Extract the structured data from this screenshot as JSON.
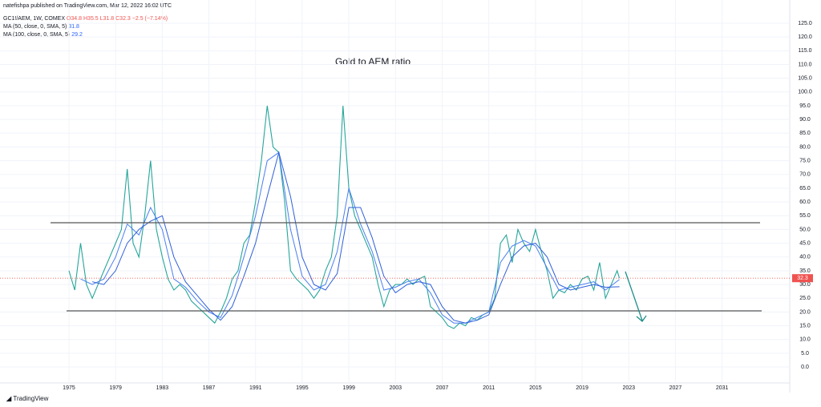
{
  "header": {
    "publisher": "natefishpa published on TradingView.com, Mar 12, 2022 16:02 UTC",
    "symbol": "GC1!/AEM, 1W, COMEX",
    "open": "O34.8",
    "high": "H35.5",
    "low": "L31.8",
    "close": "C32.3",
    "change": "−2.5 (−7.14%)",
    "ma50": "MA (50, close, 0, SMA, 5)",
    "ma50_value": "31.8",
    "ma100": "MA (100, close, 0, SMA, 5)",
    "ma100_value": "29.2"
  },
  "footer": {
    "brand": "TradingView"
  },
  "chart_data": {
    "type": "line",
    "title": "Gold to AEM ratio",
    "xlim": [
      1969.09,
      2036.8
    ],
    "ylim": [
      -5.8,
      128.2
    ],
    "xticks": [
      1975,
      1979,
      1983,
      1987,
      1991,
      1995,
      1999,
      2003,
      2007,
      2011,
      2015,
      2019,
      2023,
      2027,
      2031
    ],
    "yticks": [
      {
        "value": 0,
        "label": "0.0"
      },
      {
        "value": 5,
        "label": "5.0"
      },
      {
        "value": 10,
        "label": "10.0"
      },
      {
        "value": 15,
        "label": "15.0"
      },
      {
        "value": 20,
        "label": "20.0"
      },
      {
        "value": 25,
        "label": "25.0"
      },
      {
        "value": 30,
        "label": "30.0"
      },
      {
        "value": 35,
        "label": "35.0"
      },
      {
        "value": 40,
        "label": "40.0"
      },
      {
        "value": 45,
        "label": "45.0"
      },
      {
        "value": 50,
        "label": "50.0"
      },
      {
        "value": 55,
        "label": "55.0"
      },
      {
        "value": 60,
        "label": "60.0"
      },
      {
        "value": 65,
        "label": "65.0"
      },
      {
        "value": 70,
        "label": "70.0"
      },
      {
        "value": 75,
        "label": "75.0"
      },
      {
        "value": 80,
        "label": "80.0"
      },
      {
        "value": 85,
        "label": "85.0"
      },
      {
        "value": 90,
        "label": "90.0"
      },
      {
        "value": 95,
        "label": "95.0"
      },
      {
        "value": 100,
        "label": "100.0"
      },
      {
        "value": 105,
        "label": "105.0"
      },
      {
        "value": 110,
        "label": "110.0"
      },
      {
        "value": 115,
        "label": "115.0"
      },
      {
        "value": 120,
        "label": "120.0"
      },
      {
        "value": 125,
        "label": "125.0"
      }
    ],
    "grid": true,
    "last_price": 32.3,
    "series": [
      {
        "color": "#26a69a",
        "x": [
          1975.0,
          1975.5,
          1976.0,
          1976.5,
          1977.0,
          1977.5,
          1978.0,
          1978.5,
          1979.0,
          1979.5,
          1980.0,
          1980.5,
          1981.0,
          1981.5,
          1982.0,
          1982.5,
          1983.0,
          1983.5,
          1984.0,
          1984.5,
          1985.0,
          1985.5,
          1986.0,
          1986.5,
          1987.0,
          1987.5,
          1988.0,
          1988.5,
          1989.0,
          1989.5,
          1990.0,
          1990.5,
          1991.0,
          1991.5,
          1992.0,
          1992.5,
          1993.0,
          1993.5,
          1994.0,
          1994.5,
          1995.0,
          1995.5,
          1996.0,
          1996.5,
          1997.0,
          1997.5,
          1998.0,
          1998.5,
          1999.0,
          1999.5,
          2000.0,
          2000.5,
          2001.0,
          2001.5,
          2002.0,
          2002.5,
          2003.0,
          2003.5,
          2004.0,
          2004.5,
          2005.0,
          2005.5,
          2006.0,
          2006.5,
          2007.0,
          2007.5,
          2008.0,
          2008.5,
          2009.0,
          2009.5,
          2010.0,
          2010.5,
          2011.0,
          2011.5,
          2012.0,
          2012.5,
          2013.0,
          2013.5,
          2014.0,
          2014.5,
          2015.0,
          2015.5,
          2016.0,
          2016.5,
          2017.0,
          2017.5,
          2018.0,
          2018.5,
          2019.0,
          2019.5,
          2020.0,
          2020.5,
          2021.0,
          2021.5,
          2022.0,
          2022.2
        ],
        "values": [
          35,
          28,
          45,
          30,
          25,
          30,
          35,
          40,
          45,
          50,
          72,
          45,
          40,
          55,
          75,
          50,
          40,
          32,
          28,
          30,
          28,
          24,
          22,
          20,
          18,
          16,
          20,
          25,
          32,
          35,
          45,
          48,
          60,
          75,
          95,
          80,
          78,
          60,
          35,
          32,
          30,
          28,
          25,
          28,
          35,
          40,
          55,
          95,
          65,
          55,
          50,
          45,
          40,
          30,
          22,
          28,
          30,
          30,
          32,
          30,
          32,
          33,
          22,
          20,
          18,
          15,
          14,
          16,
          15,
          18,
          17,
          19,
          20,
          25,
          45,
          48,
          38,
          50,
          45,
          42,
          50,
          42,
          35,
          25,
          28,
          27,
          30,
          28,
          32,
          33,
          28,
          38,
          25,
          30,
          35,
          32.3
        ]
      },
      {
        "color": "#4a7ff0",
        "x": [
          1976,
          1977,
          1978,
          1979,
          1980,
          1981,
          1982,
          1983,
          1984,
          1985,
          1986,
          1987,
          1988,
          1989,
          1990,
          1991,
          1992,
          1993,
          1994,
          1995,
          1996,
          1997,
          1998,
          1999,
          2000,
          2001,
          2002,
          2003,
          2004,
          2005,
          2006,
          2007,
          2008,
          2009,
          2010,
          2011,
          2012,
          2013,
          2014,
          2015,
          2016,
          2017,
          2018,
          2019,
          2020,
          2021,
          2022.2
        ],
        "values": [
          32,
          30,
          32,
          40,
          52,
          48,
          58,
          50,
          32,
          29,
          24,
          20,
          18,
          26,
          40,
          55,
          75,
          78,
          50,
          33,
          28,
          30,
          42,
          65,
          52,
          42,
          28,
          29,
          31,
          32,
          27,
          19,
          16,
          16,
          18,
          20,
          38,
          44,
          46,
          44,
          36,
          28,
          29,
          30,
          31,
          28,
          31.8
        ]
      },
      {
        "color": "#2f5fd8",
        "x": [
          1977,
          1978,
          1979,
          1980,
          1981,
          1982,
          1983,
          1984,
          1985,
          1986,
          1987,
          1988,
          1989,
          1990,
          1991,
          1992,
          1993,
          1994,
          1995,
          1996,
          1997,
          1998,
          1999,
          2000,
          2001,
          2002,
          2003,
          2004,
          2005,
          2006,
          2007,
          2008,
          2009,
          2010,
          2011,
          2012,
          2013,
          2014,
          2015,
          2016,
          2017,
          2018,
          2019,
          2020,
          2021,
          2022.2
        ],
        "values": [
          31,
          30,
          35,
          45,
          50,
          53,
          55,
          40,
          31,
          26,
          21,
          17,
          22,
          33,
          45,
          62,
          78,
          62,
          40,
          30,
          28,
          34,
          58,
          58,
          47,
          33,
          27,
          30,
          31,
          30,
          22,
          17,
          16,
          17,
          19,
          30,
          40,
          44,
          45,
          40,
          30,
          28,
          29,
          30,
          29,
          29.2
        ]
      }
    ]
  }
}
